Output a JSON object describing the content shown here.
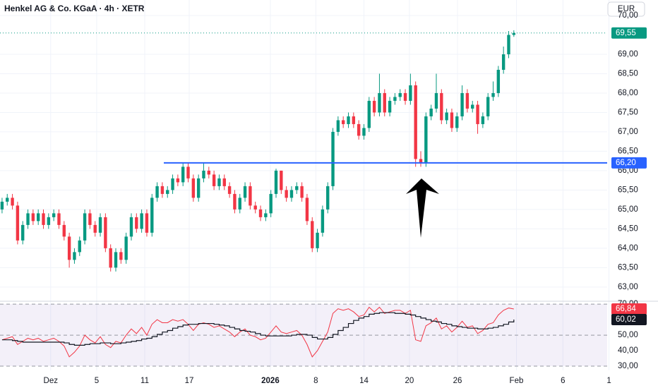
{
  "chart_data": [
    {
      "type": "candlestick",
      "title": "Henkel AG & Co. KGaA · 4h · XETR",
      "currency": "EUR",
      "open": [
        65.0,
        65.2,
        65.3,
        65.1,
        64.2,
        64.6,
        64.9,
        64.7,
        64.9,
        64.6,
        64.8,
        64.9,
        64.6,
        64.3,
        63.7,
        63.9,
        64.2,
        64.9,
        64.6,
        64.4,
        64.8,
        64.0,
        63.5,
        63.9,
        63.7,
        64.3,
        64.8,
        64.5,
        64.9,
        64.4,
        65.3,
        65.6,
        65.4,
        65.5,
        65.8,
        65.7,
        66.1,
        65.8,
        65.3,
        65.8,
        66.0,
        65.9,
        65.6,
        65.8,
        65.6,
        65.4,
        65.0,
        65.3,
        65.6,
        65.1,
        65.0,
        64.8,
        64.9,
        65.4,
        66.0,
        65.5,
        65.3,
        65.5,
        65.6,
        65.3,
        64.7,
        64.0,
        64.4,
        65.0,
        65.6,
        67.0,
        67.3,
        67.2,
        67.4,
        67.2,
        66.9,
        67.1,
        67.8,
        67.5,
        68.0,
        67.5,
        67.8,
        67.9,
        68.0,
        67.8,
        68.2,
        66.3,
        66.2,
        67.4,
        67.6,
        68.0,
        67.3,
        67.5,
        67.1,
        67.4,
        68.0,
        67.6,
        67.7,
        67.2,
        67.4,
        67.9,
        68.0,
        68.6,
        69.0,
        69.5
      ],
      "high": [
        65.3,
        65.4,
        65.4,
        65.2,
        64.7,
        65.0,
        65.0,
        65.0,
        65.0,
        64.9,
        65.0,
        65.0,
        64.7,
        64.4,
        64.0,
        64.3,
        65.0,
        65.0,
        64.7,
        64.9,
        64.9,
        64.1,
        64.0,
        64.0,
        64.4,
        64.9,
        64.9,
        65.0,
        65.0,
        65.4,
        65.7,
        65.7,
        65.6,
        65.9,
        65.9,
        66.2,
        66.2,
        65.9,
        65.9,
        66.2,
        66.1,
        66.0,
        65.9,
        65.9,
        65.7,
        65.5,
        65.4,
        65.7,
        65.7,
        65.2,
        65.1,
        65.0,
        65.5,
        66.05,
        66.0,
        65.6,
        65.6,
        65.7,
        65.7,
        65.4,
        64.8,
        64.5,
        65.1,
        65.7,
        67.1,
        67.4,
        67.4,
        67.5,
        67.5,
        67.3,
        67.2,
        67.9,
        67.9,
        68.5,
        68.1,
        67.9,
        68.0,
        68.1,
        68.1,
        68.5,
        68.3,
        66.5,
        67.5,
        67.7,
        68.5,
        68.1,
        67.6,
        67.6,
        67.5,
        68.2,
        68.1,
        67.8,
        67.8,
        67.5,
        68.0,
        68.3,
        68.7,
        69.2,
        69.6,
        69.62
      ],
      "low": [
        64.9,
        65.1,
        65.0,
        64.1,
        64.1,
        64.5,
        64.6,
        64.6,
        64.5,
        64.5,
        64.7,
        64.5,
        64.2,
        63.5,
        63.6,
        63.8,
        64.1,
        64.5,
        64.3,
        64.3,
        63.9,
        63.4,
        63.4,
        63.6,
        63.6,
        64.2,
        64.4,
        64.4,
        64.3,
        64.3,
        65.2,
        65.3,
        65.3,
        65.4,
        65.6,
        65.6,
        65.7,
        65.2,
        65.2,
        65.7,
        65.8,
        65.5,
        65.5,
        65.5,
        65.3,
        64.9,
        64.9,
        65.2,
        65.0,
        64.9,
        64.7,
        64.7,
        64.8,
        65.3,
        65.4,
        65.2,
        65.2,
        65.4,
        65.2,
        64.6,
        63.9,
        63.9,
        64.3,
        64.9,
        65.5,
        66.9,
        67.1,
        67.1,
        67.1,
        66.8,
        66.8,
        67.0,
        67.4,
        67.4,
        67.4,
        67.4,
        67.7,
        67.8,
        67.7,
        67.7,
        66.1,
        66.1,
        66.1,
        67.3,
        67.5,
        67.2,
        67.2,
        67.0,
        67.0,
        67.3,
        67.5,
        67.5,
        66.95,
        67.1,
        67.3,
        67.8,
        67.9,
        68.5,
        68.9,
        69.45
      ],
      "close": [
        65.2,
        65.3,
        65.1,
        64.2,
        64.6,
        64.9,
        64.7,
        64.9,
        64.6,
        64.8,
        64.9,
        64.6,
        64.3,
        63.7,
        63.9,
        64.2,
        64.9,
        64.6,
        64.4,
        64.8,
        64.0,
        63.5,
        63.9,
        63.7,
        64.3,
        64.8,
        64.5,
        64.9,
        64.4,
        65.3,
        65.6,
        65.4,
        65.5,
        65.8,
        65.7,
        66.1,
        65.8,
        65.3,
        65.8,
        66.0,
        65.9,
        65.6,
        65.8,
        65.6,
        65.4,
        65.0,
        65.3,
        65.6,
        65.1,
        65.0,
        64.8,
        64.9,
        65.4,
        66.0,
        65.5,
        65.3,
        65.5,
        65.6,
        65.3,
        64.7,
        64.0,
        64.4,
        65.0,
        65.6,
        67.0,
        67.3,
        67.2,
        67.4,
        67.2,
        66.9,
        67.1,
        67.8,
        67.5,
        68.0,
        67.5,
        67.8,
        67.9,
        68.0,
        67.8,
        68.2,
        66.3,
        66.2,
        67.4,
        67.6,
        68.0,
        67.3,
        67.5,
        67.1,
        67.4,
        68.0,
        67.6,
        67.7,
        67.2,
        67.4,
        67.9,
        68.0,
        68.6,
        69.0,
        69.5,
        69.55
      ],
      "up_color": "#089981",
      "down_color": "#f23645",
      "last_label": "69,55",
      "level": {
        "value": 66.2,
        "label": "66,20",
        "color": "#2962ff"
      },
      "ylim": [
        62.67,
        70.4
      ],
      "yticks": [
        {
          "value": 63,
          "label": "63,00"
        },
        {
          "value": 63.5,
          "label": "63,50"
        },
        {
          "value": 64,
          "label": "64,00"
        },
        {
          "value": 64.5,
          "label": "64,50"
        },
        {
          "value": 65,
          "label": "65,00"
        },
        {
          "value": 65.5,
          "label": "65,50"
        },
        {
          "value": 66,
          "label": "66,00"
        },
        {
          "value": 66.5,
          "label": "66,50"
        },
        {
          "value": 67,
          "label": "67,00"
        },
        {
          "value": 67.5,
          "label": "67,50"
        },
        {
          "value": 68,
          "label": "68,00"
        },
        {
          "value": 68.5,
          "label": "68,50"
        },
        {
          "value": 69,
          "label": "69,00"
        },
        {
          "value": 70,
          "label": "70,00"
        }
      ],
      "xlim": [
        -0.4,
        117.6
      ],
      "xticks": [
        {
          "value": 9.4,
          "label": "Dez"
        },
        {
          "value": 18.3,
          "label": "5"
        },
        {
          "value": 27.6,
          "label": "11"
        },
        {
          "value": 36.2,
          "label": "17"
        },
        {
          "value": 51.9,
          "label": "2026"
        },
        {
          "value": 60.7,
          "label": "8"
        },
        {
          "value": 70,
          "label": "14"
        },
        {
          "value": 78.8,
          "label": "20"
        },
        {
          "value": 88.1,
          "label": "26"
        },
        {
          "value": 99.5,
          "label": "Feb"
        },
        {
          "value": 108.5,
          "label": "6"
        },
        {
          "value": 117.4,
          "label": "1"
        }
      ],
      "grid": true
    },
    {
      "type": "line",
      "series": [
        {
          "color": "#f23645",
          "values": [
            47,
            48,
            49,
            44,
            46,
            48,
            47,
            48,
            46,
            47,
            48,
            46,
            43,
            36,
            39,
            43,
            50,
            47,
            45,
            49,
            44,
            42,
            46,
            45,
            50,
            54,
            51,
            55,
            50,
            57,
            60,
            58,
            58,
            60,
            59,
            60,
            57,
            53,
            57,
            58,
            57,
            55,
            56,
            54,
            52,
            49,
            52,
            54,
            50,
            49,
            47,
            48,
            52,
            56,
            52,
            51,
            52,
            53,
            50,
            44,
            36,
            40,
            46,
            52,
            64,
            67,
            66,
            67,
            65,
            62,
            63,
            68,
            65,
            68,
            64,
            65,
            66,
            66,
            64,
            66,
            47,
            46,
            56,
            58,
            61,
            54,
            56,
            52,
            55,
            59,
            55,
            56,
            51,
            53,
            57,
            58,
            63,
            66,
            67.5,
            66.84
          ],
          "last_label": "66,84",
          "step": false
        },
        {
          "color": "#131722",
          "values": [
            47,
            47,
            46.5,
            46,
            45.5,
            45.5,
            45.5,
            45.5,
            45.5,
            45.5,
            45.5,
            45.5,
            45,
            44,
            43.5,
            43.5,
            44,
            44.5,
            44.5,
            45,
            45,
            44.5,
            44.5,
            45,
            45.5,
            46,
            46.5,
            47.5,
            48,
            49,
            50.5,
            52,
            53,
            54.5,
            55.5,
            56.5,
            57,
            57,
            57.5,
            57.5,
            57.5,
            57,
            56.5,
            56,
            55,
            54,
            53,
            52.5,
            52,
            51,
            50,
            49.5,
            49.5,
            49.5,
            49.5,
            49.5,
            50,
            50.5,
            50.5,
            50,
            48.5,
            47.5,
            47.5,
            48.5,
            50.5,
            53,
            55,
            57.5,
            59.5,
            61,
            62,
            63.5,
            64,
            64.5,
            64.5,
            64.5,
            64,
            64,
            63.5,
            63,
            62,
            61,
            60,
            59,
            58.5,
            57.5,
            57,
            56,
            55.5,
            55,
            54.5,
            54.5,
            54,
            54,
            54.5,
            55,
            56,
            57,
            58.5,
            60.02
          ],
          "last_label": "60,02",
          "step": true
        }
      ],
      "dashed_levels": [
        70,
        50,
        30
      ],
      "ylim": [
        27.3,
        71.4
      ],
      "yticks": [
        {
          "value": 30,
          "label": "30,00"
        },
        {
          "value": 40,
          "label": "40,00"
        },
        {
          "value": 50,
          "label": "50,00"
        },
        {
          "value": 60,
          "label": "60,00"
        },
        {
          "value": 70,
          "label": "70,00"
        }
      ]
    }
  ]
}
